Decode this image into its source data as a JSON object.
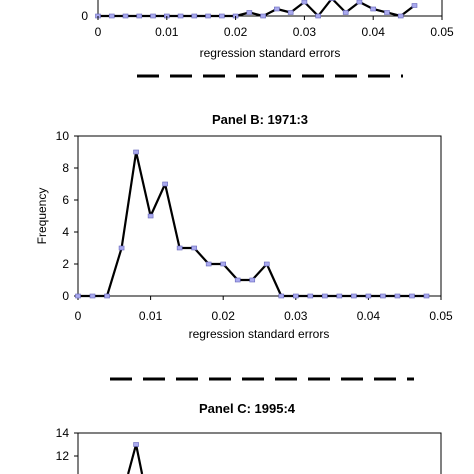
{
  "chart_data": [
    {
      "type": "line",
      "panel": "A",
      "title": "",
      "xlabel": "regression standard errors",
      "ylabel": "",
      "xlim": [
        0,
        0.05
      ],
      "x_ticks": [
        "0",
        "0.01",
        "0.02",
        "0.03",
        "0.04",
        "0.05"
      ],
      "y_ticks_visible": [
        "0"
      ],
      "series": [
        {
          "x": [
            0,
            0.002,
            0.004,
            0.006,
            0.008,
            0.01,
            0.012,
            0.014,
            0.016,
            0.018,
            0.02,
            0.022,
            0.024,
            0.026,
            0.028,
            0.03,
            0.032,
            0.034,
            0.036,
            0.038,
            0.04,
            0.042,
            0.044,
            0.046
          ],
          "y": [
            0,
            0,
            0,
            0,
            0,
            0,
            0,
            0,
            0,
            0,
            0,
            0.5,
            0,
            1,
            0.5,
            2,
            0,
            2.5,
            0.5,
            2,
            1,
            0.5,
            0,
            1.5
          ]
        }
      ],
      "grid": false
    },
    {
      "type": "line",
      "panel": "B",
      "title": "Panel B:  1971:3",
      "xlabel": "regression standard errors",
      "ylabel": "Frequency",
      "xlim": [
        0,
        0.05
      ],
      "ylim": [
        0,
        10
      ],
      "x_ticks": [
        "0",
        "0.01",
        "0.02",
        "0.03",
        "0.04",
        "0.05"
      ],
      "y_ticks": [
        "0",
        "2",
        "4",
        "6",
        "8",
        "10"
      ],
      "series": [
        {
          "x": [
            0,
            0.002,
            0.004,
            0.006,
            0.008,
            0.01,
            0.012,
            0.014,
            0.016,
            0.018,
            0.02,
            0.022,
            0.024,
            0.026,
            0.028,
            0.03,
            0.032,
            0.034,
            0.036,
            0.038,
            0.04,
            0.042,
            0.044,
            0.046,
            0.048
          ],
          "y": [
            0,
            0,
            0,
            3,
            9,
            5,
            7,
            3,
            3,
            2,
            2,
            1,
            1,
            2,
            0,
            0,
            0,
            0,
            0,
            0,
            0,
            0,
            0,
            0,
            0
          ]
        }
      ],
      "grid": false
    },
    {
      "type": "line",
      "panel": "C",
      "title": "Panel C:  1995:4",
      "xlabel": "",
      "ylabel": "",
      "ylim": [
        0,
        14
      ],
      "y_ticks_visible": [
        "12",
        "14"
      ],
      "series": [
        {
          "x": [
            0.008
          ],
          "y": [
            13
          ]
        }
      ],
      "grid": false
    }
  ],
  "colors": {
    "line": "#000000",
    "marker_fill": "#a9a9ee",
    "marker_stroke": "#6666bb"
  }
}
